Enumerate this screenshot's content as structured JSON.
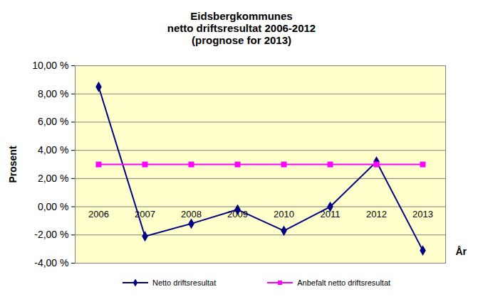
{
  "chart_data": {
    "type": "line",
    "title": "Eidsbergkommunes\nnetto driftsresultat 2006-2012",
    "subtitle": "(prognose for 2013)",
    "x_label": "År",
    "y_label": "Prosent",
    "categories": [
      "2006",
      "2007",
      "2008",
      "2009",
      "2010",
      "2011",
      "2012",
      "2013"
    ],
    "series": [
      {
        "name": "Netto driftsresultat",
        "color": "#000080",
        "marker": "diamond",
        "line_style": "solid",
        "values": [
          8.5,
          -2.1,
          -1.2,
          -0.2,
          -1.7,
          0.0,
          3.2,
          -3.1
        ]
      },
      {
        "name": "Anbefalt netto driftsresultat",
        "color": "#ff00ff",
        "marker": "square",
        "line_style": "solid",
        "values": [
          3.0,
          3.0,
          3.0,
          3.0,
          3.0,
          3.0,
          3.0,
          3.0
        ]
      }
    ],
    "ylim": [
      -4,
      10
    ],
    "yticks": [
      {
        "value": -4,
        "label": "-4,00 %"
      },
      {
        "value": -2,
        "label": "-2,00 %"
      },
      {
        "value": 0,
        "label": "0,00 %"
      },
      {
        "value": 2,
        "label": "2,00 %"
      },
      {
        "value": 4,
        "label": "4,00 %"
      },
      {
        "value": 6,
        "label": "6,00 %"
      },
      {
        "value": 8,
        "label": "8,00 %"
      },
      {
        "value": 10,
        "label": "10,00 %"
      }
    ],
    "grid": true,
    "legend": "bottom"
  }
}
